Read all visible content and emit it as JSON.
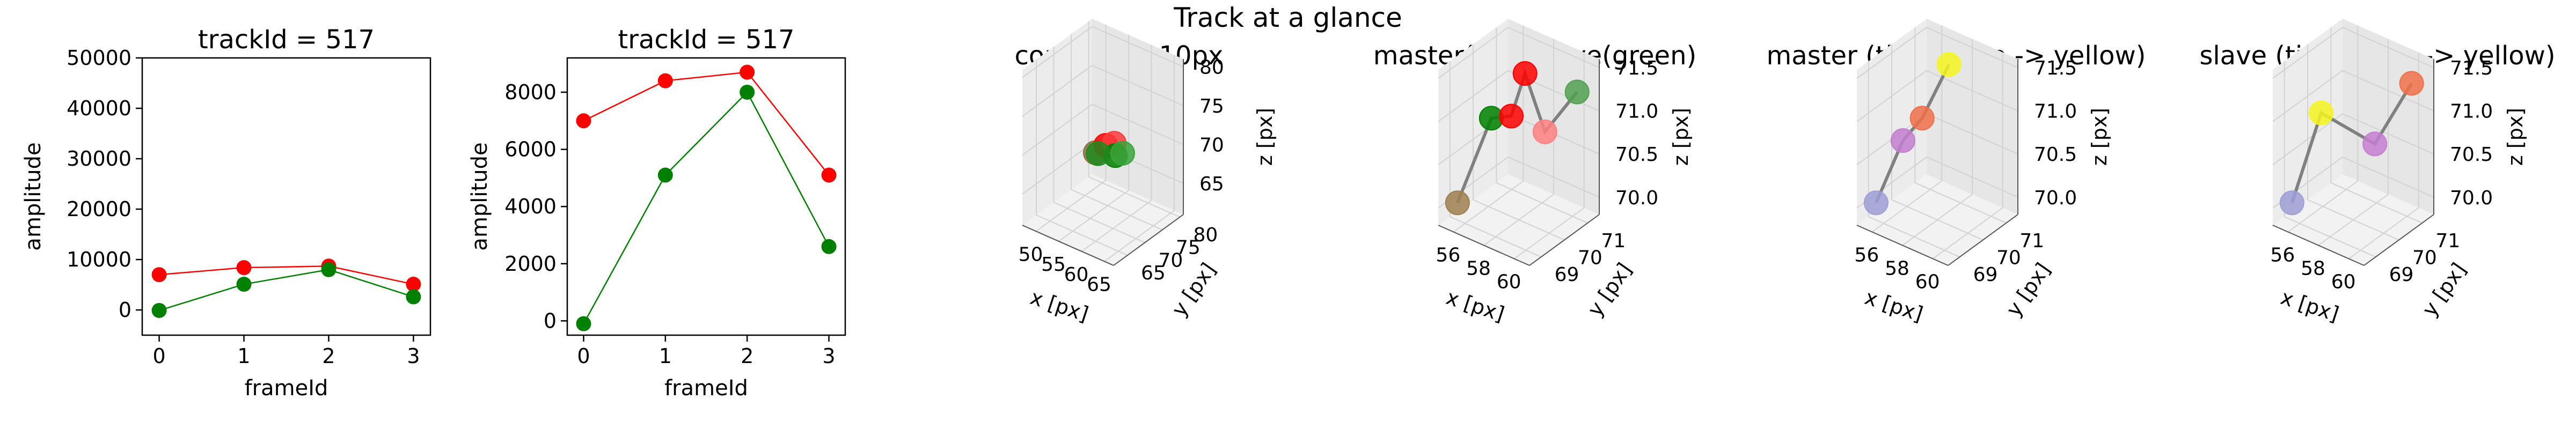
{
  "figure_title": "Track at a glance",
  "chart_data": [
    {
      "type": "line",
      "title": "trackId = 517",
      "xlabel": "frameId",
      "ylabel": "amplitude",
      "xlim": [
        -0.2,
        3.2
      ],
      "ylim": [
        -5000,
        50000
      ],
      "xticks": [
        0,
        1,
        2,
        3
      ],
      "yticks": [
        0,
        10000,
        20000,
        30000,
        40000,
        50000
      ],
      "x": [
        0,
        1,
        2,
        3
      ],
      "series": [
        {
          "color": "#ff0000",
          "values": [
            7000,
            8400,
            8700,
            5100
          ]
        },
        {
          "color": "#008000",
          "values": [
            -100,
            5100,
            8000,
            2600
          ]
        }
      ]
    },
    {
      "type": "line",
      "title": "trackId = 517",
      "xlabel": "frameId",
      "ylabel": "amplitude",
      "xlim": [
        -0.2,
        3.2
      ],
      "ylim": [
        -500,
        9200
      ],
      "xticks": [
        0,
        1,
        2,
        3
      ],
      "yticks": [
        0,
        2000,
        4000,
        6000,
        8000
      ],
      "x": [
        0,
        1,
        2,
        3
      ],
      "series": [
        {
          "color": "#ff0000",
          "values": [
            7000,
            8400,
            8700,
            5100
          ]
        },
        {
          "color": "#008000",
          "values": [
            -100,
            5100,
            8000,
            2600
          ]
        }
      ]
    },
    {
      "type": "scatter",
      "title": "context +- 10px",
      "xlabel": "x [px]",
      "ylabel": "y [px]",
      "zlabel": "z [px]",
      "xticks": [
        50,
        55,
        60,
        65
      ],
      "yticks": [
        65,
        70,
        75,
        80
      ],
      "zticks": [
        65,
        70,
        75,
        80
      ],
      "xlim": [
        47,
        67
      ],
      "ylim": [
        61,
        81
      ],
      "zlim": [
        61,
        81
      ],
      "points": [
        {
          "x": 56.5,
          "y": 69.5,
          "z": 70.0,
          "color": "#8b6f3e"
        },
        {
          "x": 58.0,
          "y": 70.5,
          "z": 71.0,
          "color": "#ff0000"
        },
        {
          "x": 59.5,
          "y": 71.0,
          "z": 71.5,
          "color": "#ff3b3b"
        },
        {
          "x": 60.5,
          "y": 70.0,
          "z": 70.5,
          "color": "#008000"
        },
        {
          "x": 57.5,
          "y": 69.0,
          "z": 70.3,
          "color": "#1f8a1f"
        },
        {
          "x": 61.5,
          "y": 70.8,
          "z": 70.8,
          "color": "#3aa33a"
        }
      ]
    },
    {
      "type": "scatter",
      "title": "master(red) slave(green)",
      "xlabel": "x [px]",
      "ylabel": "y [px]",
      "zlabel": "z [px]",
      "xticks": [
        56,
        58,
        60
      ],
      "yticks": [
        69,
        70,
        71
      ],
      "zticks": [
        70.0,
        70.5,
        71.0,
        71.5
      ],
      "xlim": [
        55,
        61
      ],
      "ylim": [
        68.5,
        71.5
      ],
      "zlim": [
        69.8,
        71.6
      ],
      "points": [
        {
          "x": 55.5,
          "y": 69.0,
          "z": 70.0,
          "color": "#a08050"
        },
        {
          "x": 56.5,
          "y": 69.8,
          "z": 70.9,
          "color": "#008000"
        },
        {
          "x": 57.2,
          "y": 70.2,
          "z": 70.9,
          "color": "#ff0000"
        },
        {
          "x": 57.8,
          "y": 70.4,
          "z": 71.4,
          "color": "#ff0000"
        },
        {
          "x": 58.5,
          "y": 70.8,
          "z": 70.7,
          "color": "#ff8080"
        },
        {
          "x": 60.0,
          "y": 71.2,
          "z": 71.2,
          "color": "#50a050"
        }
      ]
    },
    {
      "type": "scatter",
      "title": "master (time: blue -> yellow)",
      "xlabel": "x [px]",
      "ylabel": "y [px]",
      "zlabel": "z [px]",
      "xticks": [
        56,
        58,
        60
      ],
      "yticks": [
        69,
        70,
        71
      ],
      "zticks": [
        70.0,
        70.5,
        71.0,
        71.5
      ],
      "xlim": [
        55,
        61
      ],
      "ylim": [
        68.5,
        71.5
      ],
      "zlim": [
        69.8,
        71.6
      ],
      "points": [
        {
          "x": 55.5,
          "y": 69.0,
          "z": 70.0,
          "color": "#9f9fd6"
        },
        {
          "x": 56.5,
          "y": 69.5,
          "z": 70.7,
          "color": "#c47ed0"
        },
        {
          "x": 57.0,
          "y": 70.0,
          "z": 70.9,
          "color": "#f07048"
        },
        {
          "x": 58.0,
          "y": 70.5,
          "z": 71.5,
          "color": "#f5f520"
        }
      ]
    },
    {
      "type": "scatter",
      "title": "slave (time: blue -> yellow)",
      "xlabel": "x [px]",
      "ylabel": "y [px]",
      "zlabel": "z [px]",
      "xticks": [
        56,
        58,
        60
      ],
      "yticks": [
        69,
        70,
        71
      ],
      "zticks": [
        70.0,
        70.5,
        71.0,
        71.5
      ],
      "xlim": [
        55,
        61
      ],
      "ylim": [
        68.5,
        71.5
      ],
      "zlim": [
        69.8,
        71.6
      ],
      "points": [
        {
          "x": 55.5,
          "y": 69.0,
          "z": 70.0,
          "color": "#9f9fd6"
        },
        {
          "x": 56.5,
          "y": 69.6,
          "z": 71.0,
          "color": "#f5f520"
        },
        {
          "x": 58.5,
          "y": 70.6,
          "z": 70.6,
          "color": "#c47ed0"
        },
        {
          "x": 60.0,
          "y": 71.2,
          "z": 71.3,
          "color": "#f07048"
        }
      ]
    }
  ]
}
